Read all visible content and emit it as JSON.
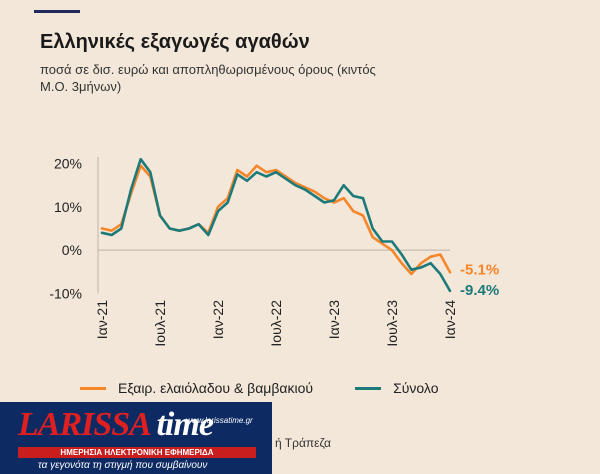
{
  "header": {
    "title": "Ελληνικές εξαγωγές αγαθών",
    "subtitle": "ποσά σε δισ. ευρώ και αποπληθωρισμένους όρους (κιντός Μ.Ο. 3μήνων)"
  },
  "source": "ή Τράπεζα",
  "logo": {
    "wordmark_a": "LARISSA",
    "wordmark_b": "time",
    "site": "www.larissatime.gr",
    "tagline1": "ΗΜΕΡΗΣΙΑ ΗΛΕΚΤΡΟΝΙΚΗ ΕΦΗΜΕΡΙΔΑ",
    "tagline2": "τα γεγονότα τη στιγμή που συμβαίνουν"
  },
  "chart_data": {
    "type": "line",
    "x": [
      "2021-01",
      "2021-02",
      "2021-03",
      "2021-04",
      "2021-05",
      "2021-06",
      "2021-07",
      "2021-08",
      "2021-09",
      "2021-10",
      "2021-11",
      "2021-12",
      "2022-01",
      "2022-02",
      "2022-03",
      "2022-04",
      "2022-05",
      "2022-06",
      "2022-07",
      "2022-08",
      "2022-09",
      "2022-10",
      "2022-11",
      "2022-12",
      "2023-01",
      "2023-02",
      "2023-03",
      "2023-04",
      "2023-05",
      "2023-06",
      "2023-07",
      "2023-08",
      "2023-09",
      "2023-10",
      "2023-11",
      "2023-12",
      "2024-01",
      "2024-02"
    ],
    "x_ticks": [
      "Ιαν-21",
      "Ιουλ-21",
      "Ιαν-22",
      "Ιουλ-22",
      "Ιαν-23",
      "Ιουλ-23",
      "Ιαν-24"
    ],
    "y_ticks": [
      "20%",
      "10%",
      "0%",
      "-10%"
    ],
    "ylim": [
      -10,
      22
    ],
    "series": [
      {
        "name": "Εξαιρ. ελαιόλαδου & βαμβακιού",
        "color": "#f5862a",
        "values": [
          5,
          4.5,
          6,
          13,
          19.5,
          17,
          8,
          5,
          4.5,
          5,
          6,
          4,
          10,
          12,
          18.5,
          17,
          19.5,
          18,
          18.5,
          17,
          15.5,
          14.5,
          13.5,
          12,
          11,
          12,
          9,
          8,
          3,
          1.5,
          0,
          -3,
          -5.5,
          -3,
          -1.5,
          -1,
          -5.1,
          null
        ],
        "end_label": "-5.1%"
      },
      {
        "name": "Σύνολο",
        "color": "#1d7a7a",
        "values": [
          4,
          3.5,
          5,
          14,
          21,
          18,
          8,
          5,
          4.5,
          5,
          6,
          3.5,
          9,
          11,
          17.5,
          16,
          18,
          17,
          18,
          16.5,
          15,
          14,
          12.5,
          11,
          11.5,
          15,
          12.5,
          12,
          5,
          2,
          2,
          -1,
          -4.5,
          -4,
          -3,
          -5.5,
          -9.4,
          null
        ],
        "end_label": "-9.4%"
      }
    ],
    "grid": false,
    "legend": "bottom"
  }
}
